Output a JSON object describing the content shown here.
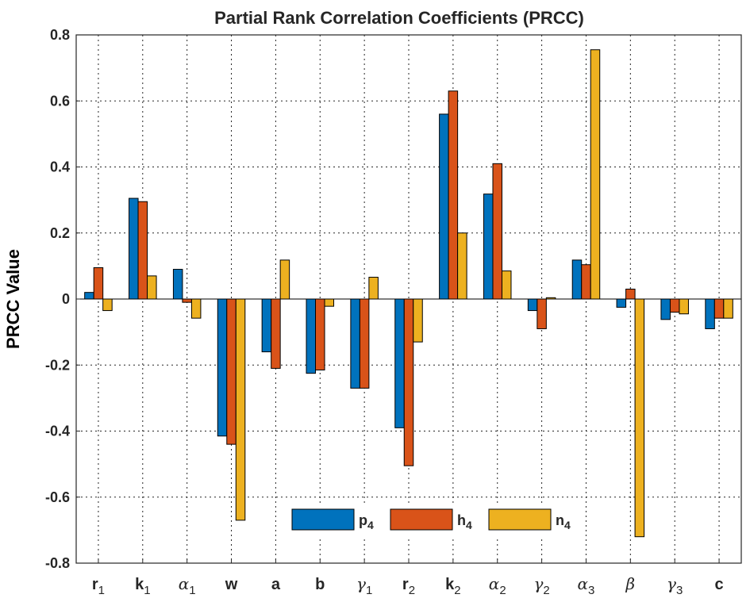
{
  "chart_data": {
    "type": "bar",
    "title": "Partial Rank Correlation Coefficients (PRCC)",
    "xlabel": "",
    "ylabel": "PRCC Value",
    "ylim": [
      -0.8,
      0.8
    ],
    "yticks": [
      "-0.8",
      "-0.6",
      "-0.4",
      "-0.2",
      "0",
      "0.2",
      "0.4",
      "0.6",
      "0.8"
    ],
    "ytick_values": [
      -0.8,
      -0.6,
      -0.4,
      -0.2,
      0,
      0.2,
      0.4,
      0.6,
      0.8
    ],
    "grid": true,
    "legend_position": "bottom-center",
    "categories": [
      {
        "base": "r",
        "sub": "1",
        "greek": false
      },
      {
        "base": "k",
        "sub": "1",
        "greek": false
      },
      {
        "base": "α",
        "sub": "1",
        "greek": true
      },
      {
        "base": "w",
        "sub": "",
        "greek": false
      },
      {
        "base": "a",
        "sub": "",
        "greek": false
      },
      {
        "base": "b",
        "sub": "",
        "greek": false
      },
      {
        "base": "γ",
        "sub": "1",
        "greek": true
      },
      {
        "base": "r",
        "sub": "2",
        "greek": false
      },
      {
        "base": "k",
        "sub": "2",
        "greek": false
      },
      {
        "base": "α",
        "sub": "2",
        "greek": true
      },
      {
        "base": "γ",
        "sub": "2",
        "greek": true
      },
      {
        "base": "α",
        "sub": "3",
        "greek": true
      },
      {
        "base": "β",
        "sub": "",
        "greek": true
      },
      {
        "base": "γ",
        "sub": "3",
        "greek": true
      },
      {
        "base": "c",
        "sub": "",
        "greek": false
      }
    ],
    "series": [
      {
        "name": "p",
        "sub": "4",
        "color": "#0072BD",
        "values": [
          0.02,
          0.305,
          0.09,
          -0.415,
          -0.16,
          -0.225,
          -0.27,
          -0.39,
          0.56,
          0.318,
          -0.035,
          0.118,
          -0.025,
          -0.062,
          -0.09
        ]
      },
      {
        "name": "h",
        "sub": "4",
        "color": "#D95319",
        "values": [
          0.095,
          0.295,
          -0.01,
          -0.44,
          -0.21,
          -0.215,
          -0.27,
          -0.505,
          0.63,
          0.41,
          -0.09,
          0.104,
          0.03,
          -0.04,
          -0.058
        ]
      },
      {
        "name": "n",
        "sub": "4",
        "color": "#EDB120",
        "values": [
          -0.035,
          0.07,
          -0.058,
          -0.67,
          0.118,
          -0.022,
          0.066,
          -0.13,
          0.2,
          0.085,
          0.004,
          0.755,
          -0.72,
          -0.045,
          -0.058
        ]
      }
    ]
  }
}
